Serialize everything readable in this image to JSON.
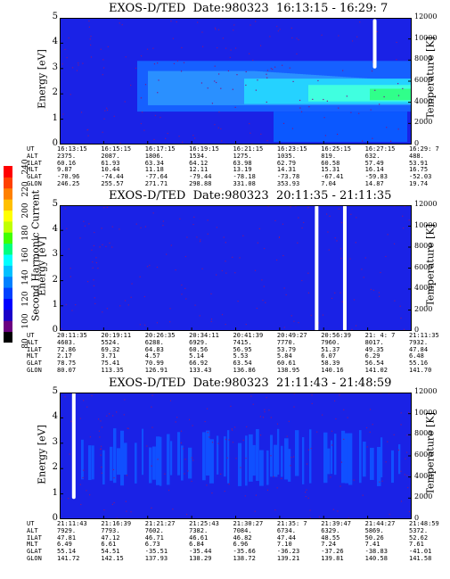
{
  "colorbar": {
    "label": "Second Harmonic Current",
    "ticks": [
      "240",
      "220",
      "200",
      "180",
      "160",
      "140",
      "120",
      "100",
      "80"
    ],
    "colors": [
      "#000000",
      "#6b0080",
      "#1a00c8",
      "#0000ff",
      "#0040ff",
      "#0080ff",
      "#00c0ff",
      "#00ffff",
      "#00ff80",
      "#40ff00",
      "#c0ff00",
      "#ffff00",
      "#ffc000",
      "#ff8000",
      "#ff4000",
      "#ff0000"
    ]
  },
  "row_labels": [
    "UT",
    "ALT",
    "ILAT",
    "MLT",
    "GLAT",
    "GLON"
  ],
  "panels": [
    {
      "title": "EXOS-D/TED  Date:980323  16:13:15 - 16:29: 7",
      "ylabel": "Energy [eV]",
      "y2label": "Temperature [K]",
      "yticks": [
        "0",
        "1",
        "2",
        "3",
        "4",
        "5"
      ],
      "y2ticks": [
        "0",
        "2000",
        "4000",
        "6000",
        "8000",
        "10000",
        "12000"
      ],
      "table": [
        [
          "16:13:15",
          "2375.",
          "60.16",
          "9.87",
          "-70.96",
          "246.25"
        ],
        [
          "16:15:15",
          "2087.",
          "61.93",
          "10.44",
          "-74.44",
          "255.57"
        ],
        [
          "16:17:15",
          "1806.",
          "63.34",
          "11.18",
          "-77.64",
          "271.71"
        ],
        [
          "16:19:15",
          "1534.",
          "64.12",
          "12.11",
          "-79.44",
          "298.88"
        ],
        [
          "16:21:15",
          "1275.",
          "63.98",
          "13.19",
          "-78.18",
          "331.08"
        ],
        [
          "16:23:15",
          "1035.",
          "62.79",
          "14.31",
          "-73.78",
          "353.93"
        ],
        [
          "16:25:15",
          "819.",
          "60.58",
          "15.31",
          "-67.41",
          "7.04"
        ],
        [
          "16:27:15",
          "632.",
          "57.49",
          "16.14",
          "-59.83",
          "14.87"
        ],
        [
          "16:29: 7",
          "488.",
          "53.91",
          "16.75",
          "-52.03",
          "19.74"
        ]
      ]
    },
    {
      "title": "EXOS-D/TED  Date:980323  20:11:35 - 21:11:35",
      "ylabel": "Energy [eV]",
      "y2label": "Temperature [K]",
      "yticks": [
        "0",
        "1",
        "2",
        "3",
        "4",
        "5"
      ],
      "y2ticks": [
        "0",
        "2000",
        "4000",
        "6000",
        "8000",
        "10000",
        "12000"
      ],
      "table": [
        [
          "20:11:35",
          "4603.",
          "72.86",
          "2.17",
          "78.75",
          "80.07"
        ],
        [
          "20:19:11",
          "5524.",
          "69.32",
          "3.71",
          "75.41",
          "113.35"
        ],
        [
          "20:26:35",
          "6288.",
          "64.83",
          "4.57",
          "70.99",
          "126.91"
        ],
        [
          "20:34:11",
          "6929.",
          "60.56",
          "5.14",
          "66.92",
          "133.43"
        ],
        [
          "20:41:39",
          "7415.",
          "56.95",
          "5.53",
          "63.54",
          "136.86"
        ],
        [
          "20:49:27",
          "7770.",
          "53.79",
          "5.84",
          "60.61",
          "138.95"
        ],
        [
          "20:56:39",
          "7960.",
          "51.37",
          "6.07",
          "58.39",
          "140.16"
        ],
        [
          "21: 4: 7",
          "8017.",
          "49.35",
          "6.29",
          "56.54",
          "141.02"
        ],
        [
          "21:11:35",
          "7932.",
          "47.84",
          "6.48",
          "55.16",
          "141.70"
        ]
      ]
    },
    {
      "title": "EXOS-D/TED  Date:980323  21:11:43 - 21:48:59",
      "ylabel": "Energy [eV]",
      "y2label": "Temperature [K]",
      "yticks": [
        "0",
        "1",
        "2",
        "3",
        "4",
        "5"
      ],
      "y2ticks": [
        "0",
        "2000",
        "4000",
        "6000",
        "8000",
        "10000",
        "12000"
      ],
      "table": [
        [
          "21:11:43",
          "7929.",
          "47.81",
          "6.49",
          "55.14",
          "141.72"
        ],
        [
          "21:16:39",
          "7793.",
          "47.12",
          "6.61",
          "54.51",
          "142.15"
        ],
        [
          "21:21:27",
          "7602.",
          "46.71",
          "6.73",
          "-35.51",
          "137.93"
        ],
        [
          "21:25:43",
          "7382.",
          "46.61",
          "6.84",
          "-35.44",
          "138.29"
        ],
        [
          "21:30:27",
          "7084.",
          "46.82",
          "6.96",
          "-35.66",
          "138.72"
        ],
        [
          "21:35: 7",
          "6734.",
          "47.44",
          "7.10",
          "-36.23",
          "139.21"
        ],
        [
          "21:39:47",
          "6329.",
          "48.55",
          "7.24",
          "-37.26",
          "139.81"
        ],
        [
          "21:44:27",
          "5869.",
          "50.26",
          "7.41",
          "-38.83",
          "140.58"
        ],
        [
          "21:48:59",
          "5372.",
          "52.62",
          "7.61",
          "-41.01",
          "141.58"
        ]
      ]
    }
  ],
  "chart_data": [
    {
      "type": "heatmap",
      "title": "EXOS-D/TED  Date:980323  16:13:15 - 16:29: 7",
      "ylabel": "Energy [eV]",
      "y2label": "Temperature [K]",
      "ylim": [
        0,
        5
      ],
      "y2lim": [
        0,
        12000
      ],
      "x": [
        "16:13:15",
        "16:15:15",
        "16:17:15",
        "16:19:15",
        "16:21:15",
        "16:23:15",
        "16:25:15",
        "16:27:15",
        "16:29: 7"
      ],
      "notes": "background ~blue; enhanced current band 1.5-3 eV from 16:17 onward, peaking (cyan/green) near 2 eV after 16:25; data gap at 16:27:15 above 3 eV",
      "gaps": [
        {
          "t_frac": 0.895,
          "y": [
            3.0,
            4.95
          ]
        }
      ]
    },
    {
      "type": "heatmap",
      "title": "EXOS-D/TED  Date:980323  20:11:35 - 21:11:35",
      "ylabel": "Energy [eV]",
      "y2label": "Temperature [K]",
      "ylim": [
        0,
        5
      ],
      "y2lim": [
        0,
        12000
      ],
      "x": [
        "20:11:35",
        "20:19:11",
        "20:26:35",
        "20:34:11",
        "20:41:39",
        "20:49:27",
        "20:56:39",
        "21: 4: 7",
        "21:11:35"
      ],
      "notes": "uniform blue background; data gaps near 20:56 and 21:01",
      "gaps": [
        {
          "t_frac": 0.73,
          "y": [
            0,
            5
          ]
        },
        {
          "t_frac": 0.81,
          "y": [
            0,
            5
          ]
        }
      ]
    },
    {
      "type": "heatmap",
      "title": "EXOS-D/TED  Date:980323  21:11:43 - 21:48:59",
      "ylabel": "Energy [eV]",
      "y2label": "Temperature [K]",
      "ylim": [
        0,
        5
      ],
      "y2lim": [
        0,
        12000
      ],
      "x": [
        "21:11:43",
        "21:16:39",
        "21:21:27",
        "21:25:43",
        "21:30:27",
        "21:35: 7",
        "21:39:47",
        "21:44:27",
        "21:48:59"
      ],
      "notes": "blue background with brighter blue striations 1.5-3 eV; data gap near 21:13",
      "gaps": [
        {
          "t_frac": 0.04,
          "y": [
            0.8,
            5
          ]
        }
      ]
    }
  ]
}
